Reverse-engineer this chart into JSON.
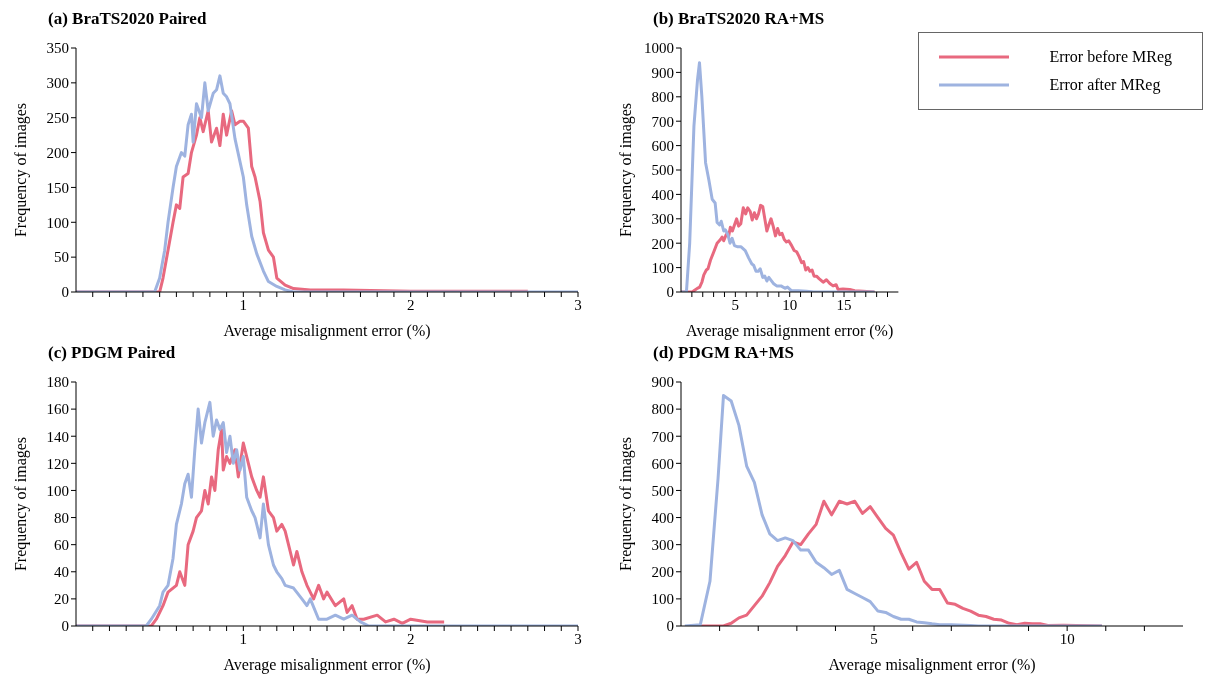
{
  "chart_data": [
    {
      "type": "line",
      "title": "(a) BraTS2020 Paired",
      "xlabel": "Average misalignment error (%)",
      "ylabel": "Frequency of images",
      "xlim": [
        0,
        3
      ],
      "ylim": [
        0,
        350
      ],
      "yticks": [
        0,
        50,
        100,
        150,
        200,
        250,
        300,
        350
      ],
      "xticks": [
        {
          "value": 0.1,
          "label": null
        },
        {
          "value": 0.2,
          "label": null
        },
        {
          "value": 0.3,
          "label": null
        },
        {
          "value": 0.4,
          "label": null
        },
        {
          "value": 0.5,
          "label": null
        },
        {
          "value": 0.6,
          "label": null
        },
        {
          "value": 0.7,
          "label": null
        },
        {
          "value": 0.8,
          "label": null
        },
        {
          "value": 0.9,
          "label": null
        },
        1,
        {
          "value": 1.1,
          "label": null
        },
        {
          "value": 1.2,
          "label": null
        },
        {
          "value": 1.3,
          "label": null
        },
        {
          "value": 1.4,
          "label": null
        },
        {
          "value": 1.5,
          "label": null
        },
        {
          "value": 1.6,
          "label": null
        },
        {
          "value": 1.7,
          "label": null
        },
        {
          "value": 1.8,
          "label": null
        },
        {
          "value": 1.9,
          "label": null
        },
        2,
        {
          "value": 2.1,
          "label": null
        },
        {
          "value": 2.2,
          "label": null
        },
        {
          "value": 2.3,
          "label": null
        },
        {
          "value": 2.4,
          "label": null
        },
        {
          "value": 2.5,
          "label": null
        },
        {
          "value": 2.6,
          "label": null
        },
        {
          "value": 2.7,
          "label": null
        },
        {
          "value": 2.8,
          "label": null
        },
        {
          "value": 2.9,
          "label": null
        },
        3
      ],
      "legend": false,
      "marker": "none",
      "line_style": "solid",
      "series": [
        {
          "color": "#e8697f",
          "x": [
            0,
            0.5,
            0.52,
            0.55,
            0.58,
            0.6,
            0.62,
            0.64,
            0.67,
            0.69,
            0.72,
            0.74,
            0.76,
            0.79,
            0.81,
            0.84,
            0.86,
            0.88,
            0.9,
            0.93,
            0.95,
            0.98,
            1.0,
            1.03,
            1.05,
            1.07,
            1.1,
            1.12,
            1.15,
            1.18,
            1.2,
            1.25,
            1.3,
            1.4,
            1.6,
            2.0,
            2.7
          ],
          "values": [
            0,
            0,
            20,
            60,
            100,
            125,
            120,
            165,
            170,
            200,
            225,
            250,
            230,
            260,
            215,
            235,
            210,
            255,
            225,
            260,
            240,
            245,
            245,
            235,
            180,
            165,
            130,
            85,
            60,
            50,
            20,
            10,
            5,
            3,
            3,
            1,
            1
          ]
        },
        {
          "color": "#9eb3e0",
          "x": [
            0,
            0.47,
            0.5,
            0.53,
            0.55,
            0.58,
            0.6,
            0.63,
            0.65,
            0.67,
            0.69,
            0.7,
            0.72,
            0.75,
            0.77,
            0.79,
            0.82,
            0.84,
            0.86,
            0.88,
            0.9,
            0.92,
            0.95,
            1.0,
            1.02,
            1.05,
            1.08,
            1.12,
            1.15,
            1.2,
            1.25,
            1.3,
            3.0
          ],
          "values": [
            0,
            0,
            20,
            60,
            100,
            150,
            180,
            200,
            195,
            240,
            255,
            215,
            270,
            250,
            300,
            260,
            285,
            290,
            310,
            285,
            280,
            270,
            220,
            165,
            125,
            80,
            55,
            30,
            15,
            8,
            3,
            0,
            0
          ]
        }
      ]
    },
    {
      "type": "line",
      "title": "(b) BraTS2020 RA+MS",
      "xlabel": "Average misalignment error (%)",
      "ylabel": "Frequency of images",
      "xlim": [
        0,
        20
      ],
      "ylim": [
        0,
        1000
      ],
      "yticks": [
        0,
        100,
        200,
        300,
        400,
        500,
        600,
        700,
        800,
        900,
        1000
      ],
      "xticks": [
        {
          "value": 1,
          "label": null
        },
        {
          "value": 2,
          "label": null
        },
        {
          "value": 3,
          "label": null
        },
        {
          "value": 4,
          "label": null
        },
        5,
        {
          "value": 6,
          "label": null
        },
        {
          "value": 7,
          "label": null
        },
        {
          "value": 8,
          "label": null
        },
        {
          "value": 9,
          "label": null
        },
        10,
        {
          "value": 11,
          "label": null
        },
        {
          "value": 12,
          "label": null
        },
        {
          "value": 13,
          "label": null
        },
        {
          "value": 14,
          "label": null
        },
        15,
        {
          "value": 16,
          "label": null
        },
        {
          "value": 17,
          "label": null
        },
        {
          "value": 18,
          "label": null
        },
        {
          "value": 19,
          "label": null
        }
      ],
      "legend": "top right",
      "marker": "none",
      "line_style": "solid",
      "series": [
        {
          "name": "Error before MReg",
          "color": "#e8697f",
          "x": [
            0,
            1.04,
            1.19,
            1.5,
            1.72,
            1.92,
            2.1,
            2.33,
            2.48,
            2.71,
            3.02,
            3.32,
            3.63,
            3.78,
            3.93,
            4.16,
            4.39,
            4.54,
            4.73,
            4.92,
            5.12,
            5.3,
            5.5,
            5.73,
            5.95,
            6.14,
            6.37,
            6.55,
            6.75,
            6.95,
            7.13,
            7.32,
            7.52,
            7.71,
            7.9,
            8.08,
            8.28,
            8.48,
            8.69,
            8.89,
            9.09,
            9.3,
            9.5,
            9.7,
            9.91,
            10.18,
            10.41,
            10.64,
            10.87,
            11.1,
            11.28,
            11.48,
            11.68,
            11.86,
            12.06,
            12.24,
            12.47,
            12.7,
            13.08,
            13.38,
            13.69,
            13.99,
            14.27,
            14.45,
            14.9,
            15.52,
            15.98,
            16.74,
            17.8
          ],
          "values": [
            0,
            0,
            5,
            15,
            20,
            40,
            70,
            90,
            95,
            130,
            165,
            200,
            215,
            225,
            210,
            235,
            230,
            265,
            250,
            275,
            300,
            270,
            280,
            345,
            320,
            345,
            330,
            295,
            325,
            300,
            320,
            355,
            350,
            300,
            250,
            275,
            300,
            270,
            230,
            260,
            235,
            240,
            215,
            205,
            210,
            190,
            170,
            165,
            145,
            120,
            125,
            90,
            100,
            85,
            90,
            65,
            65,
            55,
            40,
            50,
            35,
            25,
            30,
            10,
            12,
            10,
            5,
            3,
            0
          ]
        },
        {
          "name": "Error after MReg",
          "color": "#9eb3e0",
          "x": [
            0,
            0.5,
            0.8,
            1.19,
            1.52,
            1.7,
            1.92,
            2.26,
            2.56,
            2.87,
            3.14,
            3.32,
            3.55,
            3.7,
            3.93,
            4.08,
            4.31,
            4.51,
            4.7,
            4.92,
            5.23,
            5.53,
            5.91,
            6.22,
            6.52,
            6.68,
            6.9,
            7.1,
            7.29,
            7.52,
            7.71,
            7.9,
            8.08,
            8.5,
            8.8,
            9.2,
            9.57,
            9.8,
            10.18,
            10.8,
            11.55,
            12.2,
            17.8
          ],
          "values": [
            0,
            0,
            200,
            680,
            870,
            940,
            800,
            530,
            460,
            380,
            365,
            285,
            275,
            290,
            250,
            255,
            235,
            200,
            220,
            190,
            185,
            185,
            170,
            140,
            115,
            110,
            85,
            85,
            95,
            60,
            65,
            45,
            60,
            35,
            25,
            25,
            15,
            20,
            5,
            5,
            3,
            0,
            0
          ]
        }
      ]
    },
    {
      "type": "line",
      "title": "(c) PDGM Paired",
      "xlabel": "Average misalignment error (%)",
      "ylabel": "Frequency of images",
      "xlim": [
        0,
        3
      ],
      "ylim": [
        0,
        180
      ],
      "yticks": [
        0,
        20,
        40,
        60,
        80,
        100,
        120,
        140,
        160,
        180
      ],
      "xticks": [
        {
          "value": 0.1,
          "label": null
        },
        {
          "value": 0.2,
          "label": null
        },
        {
          "value": 0.3,
          "label": null
        },
        {
          "value": 0.4,
          "label": null
        },
        {
          "value": 0.5,
          "label": null
        },
        {
          "value": 0.6,
          "label": null
        },
        {
          "value": 0.7,
          "label": null
        },
        {
          "value": 0.8,
          "label": null
        },
        {
          "value": 0.9,
          "label": null
        },
        1,
        {
          "value": 1.1,
          "label": null
        },
        {
          "value": 1.2,
          "label": null
        },
        {
          "value": 1.3,
          "label": null
        },
        {
          "value": 1.4,
          "label": null
        },
        {
          "value": 1.5,
          "label": null
        },
        {
          "value": 1.6,
          "label": null
        },
        {
          "value": 1.7,
          "label": null
        },
        {
          "value": 1.8,
          "label": null
        },
        {
          "value": 1.9,
          "label": null
        },
        2,
        {
          "value": 2.1,
          "label": null
        },
        {
          "value": 2.2,
          "label": null
        },
        {
          "value": 2.3,
          "label": null
        },
        {
          "value": 2.4,
          "label": null
        },
        {
          "value": 2.5,
          "label": null
        },
        {
          "value": 2.6,
          "label": null
        },
        {
          "value": 2.7,
          "label": null
        },
        {
          "value": 2.8,
          "label": null
        },
        {
          "value": 2.9,
          "label": null
        },
        3
      ],
      "legend": false,
      "marker": "none",
      "line_style": "solid",
      "series": [
        {
          "color": "#e8697f",
          "x": [
            0,
            0.45,
            0.48,
            0.52,
            0.55,
            0.6,
            0.62,
            0.65,
            0.67,
            0.7,
            0.72,
            0.75,
            0.77,
            0.79,
            0.81,
            0.83,
            0.85,
            0.87,
            0.88,
            0.9,
            0.92,
            0.95,
            0.97,
            1.0,
            1.03,
            1.05,
            1.08,
            1.1,
            1.12,
            1.15,
            1.18,
            1.2,
            1.23,
            1.25,
            1.27,
            1.3,
            1.32,
            1.35,
            1.38,
            1.42,
            1.45,
            1.48,
            1.5,
            1.55,
            1.6,
            1.62,
            1.65,
            1.68,
            1.72,
            1.8,
            1.85,
            1.9,
            1.95,
            2.0,
            2.1,
            2.2
          ],
          "values": [
            0,
            0,
            5,
            15,
            25,
            30,
            40,
            30,
            60,
            70,
            80,
            85,
            100,
            90,
            110,
            100,
            130,
            145,
            115,
            125,
            120,
            130,
            110,
            135,
            120,
            110,
            100,
            95,
            110,
            85,
            80,
            70,
            75,
            70,
            60,
            45,
            55,
            40,
            30,
            20,
            30,
            20,
            25,
            15,
            20,
            10,
            15,
            5,
            5,
            8,
            3,
            5,
            2,
            5,
            3,
            3
          ]
        },
        {
          "color": "#9eb3e0",
          "x": [
            0,
            0.42,
            0.45,
            0.5,
            0.52,
            0.55,
            0.58,
            0.6,
            0.63,
            0.65,
            0.67,
            0.69,
            0.71,
            0.73,
            0.75,
            0.77,
            0.8,
            0.82,
            0.84,
            0.86,
            0.88,
            0.9,
            0.92,
            0.94,
            0.96,
            0.98,
            1.0,
            1.02,
            1.05,
            1.07,
            1.1,
            1.12,
            1.15,
            1.18,
            1.2,
            1.23,
            1.25,
            1.3,
            1.35,
            1.38,
            1.4,
            1.45,
            1.5,
            1.55,
            1.6,
            1.65,
            1.7,
            1.75,
            3.0
          ],
          "values": [
            0,
            0,
            5,
            15,
            25,
            30,
            50,
            75,
            90,
            105,
            112,
            95,
            130,
            160,
            135,
            150,
            165,
            140,
            152,
            145,
            150,
            128,
            140,
            120,
            130,
            115,
            125,
            95,
            85,
            80,
            65,
            90,
            60,
            45,
            40,
            35,
            30,
            28,
            20,
            15,
            20,
            5,
            5,
            8,
            5,
            8,
            3,
            0,
            0
          ]
        }
      ]
    },
    {
      "type": "line",
      "title": "(d) PDGM RA+MS",
      "xlabel": "Average misalignment error (%)",
      "ylabel": "Frequency of images",
      "xlim": [
        0,
        13
      ],
      "ylim": [
        0,
        900
      ],
      "yticks": [
        0,
        100,
        200,
        300,
        400,
        500,
        600,
        700,
        800,
        900
      ],
      "xticks": [
        {
          "value": 1,
          "label": null
        },
        {
          "value": 2,
          "label": null
        },
        {
          "value": 3,
          "label": null
        },
        {
          "value": 4,
          "label": null
        },
        5,
        {
          "value": 6,
          "label": null
        },
        {
          "value": 7,
          "label": null
        },
        {
          "value": 8,
          "label": null
        },
        {
          "value": 9,
          "label": null
        },
        10,
        {
          "value": 11,
          "label": null
        },
        {
          "value": 12,
          "label": null
        }
      ],
      "legend": false,
      "marker": "none",
      "line_style": "solid",
      "series": [
        {
          "color": "#e8697f",
          "x": [
            0.5,
            1.1,
            1.3,
            1.5,
            1.7,
            1.9,
            2.1,
            2.3,
            2.5,
            2.7,
            2.9,
            3.1,
            3.3,
            3.5,
            3.7,
            3.9,
            4.1,
            4.3,
            4.5,
            4.7,
            4.9,
            5.1,
            5.3,
            5.5,
            5.7,
            5.9,
            6.1,
            6.3,
            6.5,
            6.7,
            6.9,
            7.1,
            7.3,
            7.5,
            7.7,
            7.9,
            8.1,
            8.3,
            8.5,
            8.7,
            8.9,
            9.1,
            9.3,
            9.5,
            9.9,
            10.9
          ],
          "values": [
            0,
            0,
            10,
            30,
            40,
            75,
            110,
            160,
            220,
            260,
            310,
            300,
            340,
            375,
            460,
            410,
            460,
            450,
            460,
            415,
            440,
            400,
            360,
            335,
            270,
            210,
            235,
            165,
            135,
            135,
            85,
            80,
            65,
            55,
            40,
            35,
            25,
            22,
            10,
            5,
            10,
            8,
            8,
            2,
            3,
            0
          ]
        },
        {
          "color": "#9eb3e0",
          "x": [
            0.1,
            0.5,
            0.75,
            0.96,
            1.1,
            1.3,
            1.5,
            1.7,
            1.9,
            2.1,
            2.3,
            2.5,
            2.7,
            2.9,
            3.1,
            3.3,
            3.5,
            3.7,
            3.9,
            4.1,
            4.3,
            4.5,
            4.7,
            4.9,
            5.1,
            5.3,
            5.5,
            5.7,
            5.9,
            6.1,
            6.3,
            6.5,
            6.7,
            7.0,
            7.5,
            7.7,
            10.9
          ],
          "values": [
            0,
            5,
            165,
            545,
            850,
            830,
            740,
            590,
            530,
            410,
            340,
            315,
            325,
            315,
            280,
            280,
            235,
            215,
            190,
            205,
            135,
            120,
            105,
            90,
            55,
            50,
            35,
            25,
            25,
            15,
            12,
            8,
            5,
            5,
            2,
            0,
            0
          ]
        }
      ]
    }
  ]
}
